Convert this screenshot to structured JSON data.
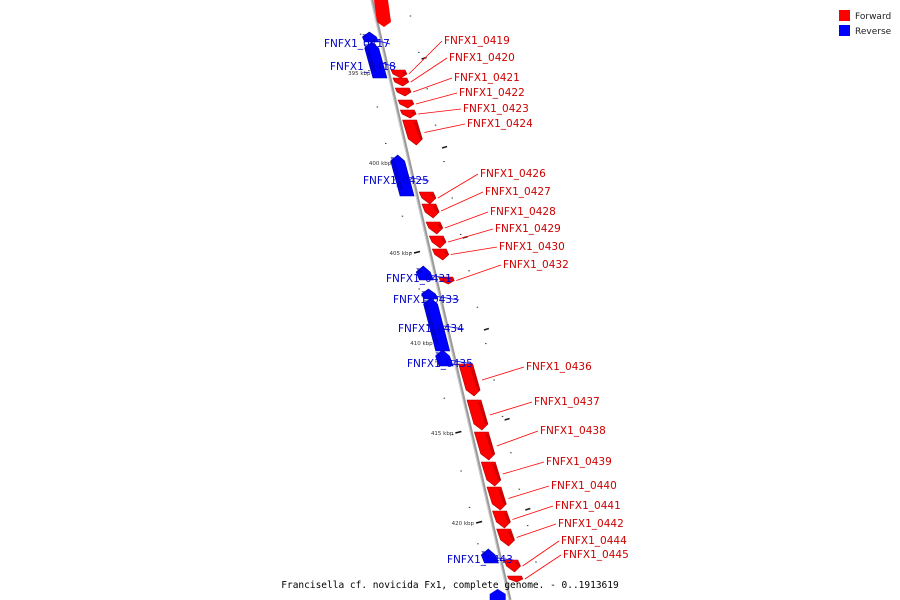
{
  "caption": "Francisella cf. novicida Fx1, complete genome. - 0..1913619",
  "legend": [
    {
      "label": "Forward",
      "color": "#ff0000"
    },
    {
      "label": "Reverse",
      "color": "#0000ff"
    }
  ],
  "colors": {
    "forward": "#ff0000",
    "reverse": "#0000ff",
    "backbone": "#9a9a9a"
  },
  "ticks": [
    {
      "label": "395 kbp"
    },
    {
      "label": "400 kbp"
    },
    {
      "label": "405 kbp"
    },
    {
      "label": "410 kbp"
    },
    {
      "label": "415 kbp"
    },
    {
      "label": "420 kbp"
    }
  ],
  "genes": [
    {
      "label": "FNFX1_0417",
      "strand": "reverse"
    },
    {
      "label": "FNFX1_0418",
      "strand": "reverse"
    },
    {
      "label": "FNFX1_0419",
      "strand": "forward"
    },
    {
      "label": "FNFX1_0420",
      "strand": "forward"
    },
    {
      "label": "FNFX1_0421",
      "strand": "forward"
    },
    {
      "label": "FNFX1_0422",
      "strand": "forward"
    },
    {
      "label": "FNFX1_0423",
      "strand": "forward"
    },
    {
      "label": "FNFX1_0424",
      "strand": "forward"
    },
    {
      "label": "FNFX1_0425",
      "strand": "reverse"
    },
    {
      "label": "FNFX1_0426",
      "strand": "forward"
    },
    {
      "label": "FNFX1_0427",
      "strand": "forward"
    },
    {
      "label": "FNFX1_0428",
      "strand": "forward"
    },
    {
      "label": "FNFX1_0429",
      "strand": "forward"
    },
    {
      "label": "FNFX1_0430",
      "strand": "forward"
    },
    {
      "label": "FNFX1_0431",
      "strand": "reverse"
    },
    {
      "label": "FNFX1_0432",
      "strand": "forward"
    },
    {
      "label": "FNFX1_0433",
      "strand": "reverse"
    },
    {
      "label": "FNFX1_0434",
      "strand": "reverse"
    },
    {
      "label": "FNFX1_0435",
      "strand": "reverse"
    },
    {
      "label": "FNFX1_0436",
      "strand": "forward"
    },
    {
      "label": "FNFX1_0437",
      "strand": "forward"
    },
    {
      "label": "FNFX1_0438",
      "strand": "forward"
    },
    {
      "label": "FNFX1_0439",
      "strand": "forward"
    },
    {
      "label": "FNFX1_0440",
      "strand": "forward"
    },
    {
      "label": "FNFX1_0441",
      "strand": "forward"
    },
    {
      "label": "FNFX1_0442",
      "strand": "forward"
    },
    {
      "label": "FNFX1_0443",
      "strand": "reverse"
    },
    {
      "label": "FNFX1_0444",
      "strand": "forward"
    },
    {
      "label": "FNFX1_0445",
      "strand": "forward"
    }
  ]
}
